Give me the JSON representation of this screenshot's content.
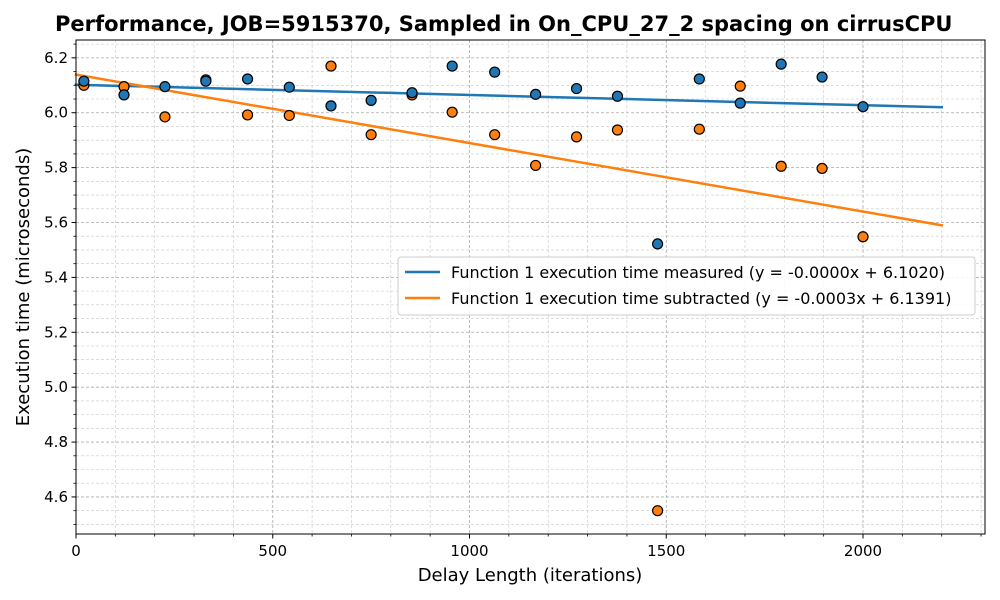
{
  "chart_data": {
    "type": "scatter",
    "title": "Performance, JOB=5915370, Sampled in On_CPU_27_2 spacing on cirrusCPU",
    "xlabel": "Delay Length (iterations)",
    "ylabel": "Execution time (microseconds)",
    "xlim": [
      0,
      2310
    ],
    "ylim": [
      4.465,
      6.265
    ],
    "x_ticks": [
      0,
      500,
      1000,
      1500,
      2000
    ],
    "x_tick_labels": [
      "0",
      "500",
      "1000",
      "1500",
      "2000"
    ],
    "y_ticks": [
      4.6,
      4.8,
      5.0,
      5.2,
      5.4,
      5.6,
      5.8,
      6.0,
      6.2
    ],
    "y_tick_labels": [
      "4.6",
      "4.8",
      "5.0",
      "5.2",
      "5.4",
      "5.6",
      "5.8",
      "6.0",
      "6.2"
    ],
    "grid": true,
    "legend_placement": "center-right",
    "series": [
      {
        "name": "Function 1 execution time measured (y = -0.0000x + 6.1020)",
        "color": "#1f77b4",
        "points": [
          [
            20,
            6.115
          ],
          [
            122,
            6.065
          ],
          [
            226,
            6.095
          ],
          [
            330,
            6.115
          ],
          [
            436,
            6.123
          ],
          [
            542,
            6.093
          ],
          [
            648,
            6.025
          ],
          [
            750,
            6.045
          ],
          [
            854,
            6.073
          ],
          [
            956,
            6.17
          ],
          [
            1064,
            6.148
          ],
          [
            1168,
            6.067
          ],
          [
            1272,
            6.088
          ],
          [
            1376,
            6.06
          ],
          [
            1478,
            5.522
          ],
          [
            1584,
            6.123
          ],
          [
            1688,
            6.035
          ],
          [
            1792,
            6.177
          ],
          [
            1896,
            6.13
          ],
          [
            2000,
            6.022
          ]
        ],
        "fit": {
          "slope": -0.0,
          "intercept": 6.102,
          "x_range": [
            0,
            2200
          ],
          "y_end": 6.02
        }
      },
      {
        "name": "Function 1 execution time subtracted (y = -0.0003x + 6.1391)",
        "color": "#ff7f0e",
        "points": [
          [
            20,
            6.1
          ],
          [
            122,
            6.095
          ],
          [
            226,
            5.985
          ],
          [
            330,
            6.12
          ],
          [
            436,
            5.992
          ],
          [
            542,
            5.99
          ],
          [
            648,
            6.17
          ],
          [
            750,
            5.92
          ],
          [
            854,
            6.065
          ],
          [
            956,
            6.002
          ],
          [
            1064,
            5.92
          ],
          [
            1168,
            5.808
          ],
          [
            1272,
            5.912
          ],
          [
            1376,
            5.937
          ],
          [
            1478,
            4.55
          ],
          [
            1584,
            5.94
          ],
          [
            1688,
            6.097
          ],
          [
            1792,
            5.805
          ],
          [
            1896,
            5.797
          ],
          [
            2000,
            5.548
          ]
        ],
        "fit": {
          "slope": -0.0003,
          "intercept": 6.1391,
          "x_range": [
            0,
            2200
          ],
          "y_end": 5.59
        }
      }
    ]
  }
}
